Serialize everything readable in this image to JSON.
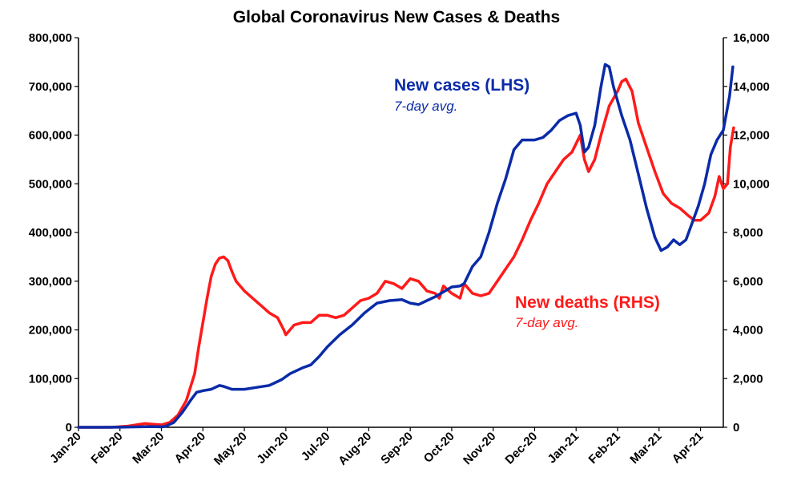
{
  "chart_data": {
    "type": "line",
    "title": "Global Coronavirus New Cases & Deaths",
    "x_ticks": [
      "Jan-20",
      "Feb-20",
      "Mar-20",
      "Apr-20",
      "May-20",
      "Jun-20",
      "Jul-20",
      "Aug-20",
      "Sep-20",
      "Oct-20",
      "Nov-20",
      "Dec-20",
      "Jan-21",
      "Feb-21",
      "Mar-21",
      "Apr-21"
    ],
    "xlim": [
      0,
      15.55
    ],
    "y_left": {
      "lim": [
        0,
        800000
      ],
      "ticks": [
        "0",
        "100,000",
        "200,000",
        "300,000",
        "400,000",
        "500,000",
        "600,000",
        "700,000",
        "800,000"
      ]
    },
    "y_right": {
      "lim": [
        0,
        16000
      ],
      "ticks": [
        "0",
        "2,000",
        "4,000",
        "6,000",
        "8,000",
        "10,000",
        "12,000",
        "14,000",
        "16,000"
      ]
    },
    "grid": false,
    "series": [
      {
        "name": "New cases (LHS)",
        "subtitle": "7-day avg.",
        "axis": "left",
        "color": "#0a2ba8",
        "points": [
          [
            0,
            0
          ],
          [
            0.5,
            0
          ],
          [
            1,
            200
          ],
          [
            1.5,
            1000
          ],
          [
            1.8,
            1500
          ],
          [
            2,
            800
          ],
          [
            2.1,
            2000
          ],
          [
            2.3,
            10000
          ],
          [
            2.5,
            30000
          ],
          [
            2.7,
            55000
          ],
          [
            2.85,
            72000
          ],
          [
            3,
            75000
          ],
          [
            3.2,
            78000
          ],
          [
            3.4,
            86000
          ],
          [
            3.5,
            84000
          ],
          [
            3.7,
            78000
          ],
          [
            4,
            78000
          ],
          [
            4.3,
            82000
          ],
          [
            4.6,
            86000
          ],
          [
            4.9,
            98000
          ],
          [
            5.1,
            110000
          ],
          [
            5.4,
            122000
          ],
          [
            5.6,
            128000
          ],
          [
            5.8,
            145000
          ],
          [
            6,
            165000
          ],
          [
            6.3,
            190000
          ],
          [
            6.6,
            210000
          ],
          [
            6.9,
            235000
          ],
          [
            7.2,
            255000
          ],
          [
            7.5,
            260000
          ],
          [
            7.8,
            262000
          ],
          [
            8,
            255000
          ],
          [
            8.2,
            252000
          ],
          [
            8.4,
            260000
          ],
          [
            8.6,
            268000
          ],
          [
            8.8,
            278000
          ],
          [
            9,
            288000
          ],
          [
            9.2,
            290000
          ],
          [
            9.3,
            295000
          ],
          [
            9.5,
            330000
          ],
          [
            9.7,
            350000
          ],
          [
            9.9,
            400000
          ],
          [
            10.1,
            460000
          ],
          [
            10.3,
            510000
          ],
          [
            10.5,
            570000
          ],
          [
            10.7,
            590000
          ],
          [
            11,
            590000
          ],
          [
            11.2,
            595000
          ],
          [
            11.4,
            610000
          ],
          [
            11.6,
            630000
          ],
          [
            11.8,
            640000
          ],
          [
            12,
            645000
          ],
          [
            12.1,
            620000
          ],
          [
            12.2,
            565000
          ],
          [
            12.3,
            575000
          ],
          [
            12.45,
            620000
          ],
          [
            12.6,
            700000
          ],
          [
            12.7,
            745000
          ],
          [
            12.8,
            740000
          ],
          [
            12.9,
            700000
          ],
          [
            13.1,
            640000
          ],
          [
            13.3,
            590000
          ],
          [
            13.5,
            520000
          ],
          [
            13.7,
            450000
          ],
          [
            13.9,
            390000
          ],
          [
            14.05,
            363000
          ],
          [
            14.2,
            370000
          ],
          [
            14.35,
            385000
          ],
          [
            14.5,
            375000
          ],
          [
            14.65,
            385000
          ],
          [
            14.8,
            420000
          ],
          [
            14.95,
            455000
          ],
          [
            15.1,
            500000
          ],
          [
            15.25,
            560000
          ],
          [
            15.4,
            590000
          ],
          [
            15.55,
            610000
          ],
          [
            15.7,
            680000
          ],
          [
            15.78,
            740000
          ]
        ]
      },
      {
        "name": "New deaths (RHS)",
        "subtitle": "7-day avg.",
        "axis": "right",
        "color": "#ff1a1a",
        "points": [
          [
            0,
            0
          ],
          [
            0.8,
            0
          ],
          [
            1.2,
            50
          ],
          [
            1.6,
            150
          ],
          [
            2,
            100
          ],
          [
            2.2,
            200
          ],
          [
            2.4,
            500
          ],
          [
            2.6,
            1100
          ],
          [
            2.8,
            2200
          ],
          [
            2.9,
            3300
          ],
          [
            3,
            4300
          ],
          [
            3.1,
            5300
          ],
          [
            3.2,
            6200
          ],
          [
            3.3,
            6700
          ],
          [
            3.4,
            6950
          ],
          [
            3.5,
            7000
          ],
          [
            3.6,
            6850
          ],
          [
            3.7,
            6400
          ],
          [
            3.8,
            6000
          ],
          [
            4,
            5600
          ],
          [
            4.2,
            5300
          ],
          [
            4.4,
            5000
          ],
          [
            4.6,
            4700
          ],
          [
            4.8,
            4500
          ],
          [
            4.95,
            4000
          ],
          [
            5,
            3800
          ],
          [
            5.2,
            4200
          ],
          [
            5.4,
            4300
          ],
          [
            5.6,
            4300
          ],
          [
            5.8,
            4600
          ],
          [
            6,
            4600
          ],
          [
            6.2,
            4500
          ],
          [
            6.4,
            4600
          ],
          [
            6.6,
            4900
          ],
          [
            6.8,
            5200
          ],
          [
            7,
            5300
          ],
          [
            7.2,
            5500
          ],
          [
            7.4,
            6000
          ],
          [
            7.6,
            5900
          ],
          [
            7.8,
            5700
          ],
          [
            8,
            6100
          ],
          [
            8.2,
            6000
          ],
          [
            8.4,
            5600
          ],
          [
            8.6,
            5500
          ],
          [
            8.7,
            5300
          ],
          [
            8.8,
            5800
          ],
          [
            9,
            5500
          ],
          [
            9.2,
            5300
          ],
          [
            9.3,
            5900
          ],
          [
            9.5,
            5500
          ],
          [
            9.7,
            5400
          ],
          [
            9.9,
            5500
          ],
          [
            10.1,
            6000
          ],
          [
            10.3,
            6500
          ],
          [
            10.5,
            7000
          ],
          [
            10.7,
            7700
          ],
          [
            10.9,
            8500
          ],
          [
            11.1,
            9200
          ],
          [
            11.3,
            10000
          ],
          [
            11.5,
            10500
          ],
          [
            11.7,
            11000
          ],
          [
            11.9,
            11300
          ],
          [
            12.1,
            12000
          ],
          [
            12.2,
            11000
          ],
          [
            12.3,
            10500
          ],
          [
            12.45,
            11000
          ],
          [
            12.6,
            12000
          ],
          [
            12.8,
            13200
          ],
          [
            13,
            13800
          ],
          [
            13.1,
            14200
          ],
          [
            13.2,
            14300
          ],
          [
            13.35,
            13800
          ],
          [
            13.5,
            12500
          ],
          [
            13.7,
            11500
          ],
          [
            13.9,
            10500
          ],
          [
            14.1,
            9600
          ],
          [
            14.3,
            9200
          ],
          [
            14.5,
            9000
          ],
          [
            14.7,
            8700
          ],
          [
            14.85,
            8500
          ],
          [
            15,
            8500
          ],
          [
            15.2,
            8800
          ],
          [
            15.35,
            9500
          ],
          [
            15.45,
            10300
          ],
          [
            15.55,
            9800
          ],
          [
            15.65,
            10000
          ],
          [
            15.72,
            11500
          ],
          [
            15.8,
            12300
          ]
        ]
      }
    ]
  }
}
